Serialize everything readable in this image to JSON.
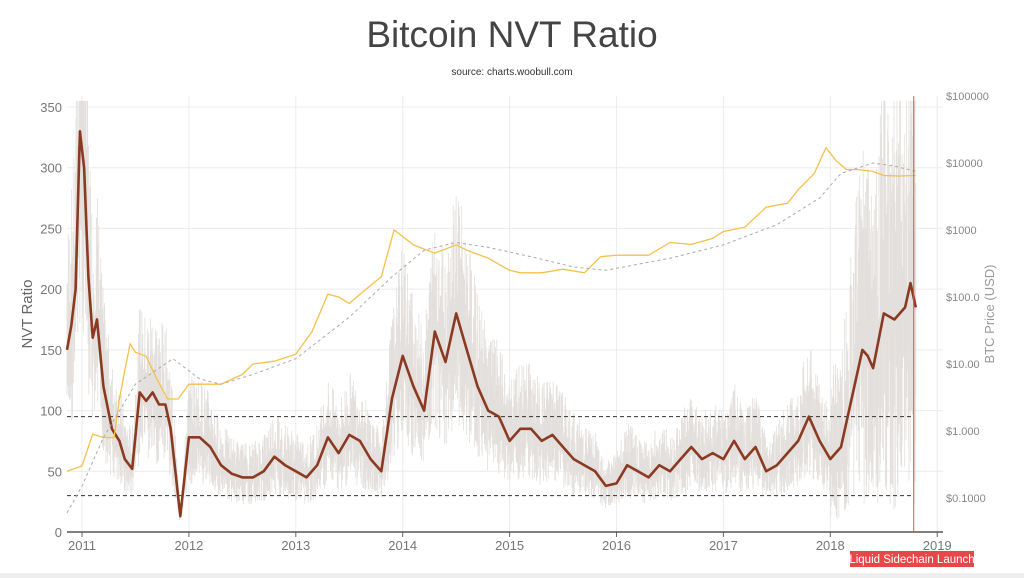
{
  "chart_data": {
    "type": "line",
    "title": "Bitcoin NVT Ratio",
    "subtitle": "source: charts.woobull.com",
    "xlim": [
      2010.86,
      2019.1
    ],
    "x_ticks": [
      "2011",
      "2012",
      "2013",
      "2014",
      "2015",
      "2016",
      "2017",
      "2018",
      "2019"
    ],
    "y_left": {
      "label": "NVT Ratio",
      "lim": [
        0,
        355
      ],
      "ticks": [
        "0",
        "50",
        "100",
        "150",
        "200",
        "250",
        "300",
        "350"
      ]
    },
    "y_right": {
      "label": "BTC Price (USD)",
      "scale": "log",
      "lim": [
        0.035,
        100000
      ],
      "ticks": [
        "$0.1000",
        "$1.000",
        "$10.00",
        "$100.0",
        "$1000",
        "$10000",
        "$100000"
      ],
      "tick_values": [
        0.1,
        1,
        10,
        100,
        1000,
        10000,
        100000
      ]
    },
    "grid": true,
    "colors": {
      "nvt": "#8b3a22",
      "price": "#f5c04a",
      "price_ma": "#aaaaaa",
      "raw": "#e3dfdc",
      "threshold": "#333333",
      "event": "#e8474a"
    },
    "thresholds": [
      95,
      30
    ],
    "event": {
      "x": 2018.78,
      "label": "Liquid Sidechain Launch"
    },
    "series": [
      {
        "axis": "left",
        "kind": "nvt",
        "x": [
          2010.86,
          2010.9,
          2010.94,
          2010.98,
          2011.02,
          2011.06,
          2011.1,
          2011.14,
          2011.2,
          2011.28,
          2011.35,
          2011.4,
          2011.47,
          2011.54,
          2011.6,
          2011.66,
          2011.72,
          2011.78,
          2011.83,
          2011.92,
          2012.0,
          2012.1,
          2012.2,
          2012.3,
          2012.4,
          2012.5,
          2012.6,
          2012.7,
          2012.8,
          2012.9,
          2013.0,
          2013.1,
          2013.2,
          2013.3,
          2013.4,
          2013.5,
          2013.6,
          2013.7,
          2013.8,
          2013.9,
          2014.0,
          2014.1,
          2014.2,
          2014.3,
          2014.4,
          2014.5,
          2014.6,
          2014.7,
          2014.8,
          2014.9,
          2015.0,
          2015.1,
          2015.2,
          2015.3,
          2015.4,
          2015.5,
          2015.6,
          2015.7,
          2015.8,
          2015.9,
          2016.0,
          2016.1,
          2016.2,
          2016.3,
          2016.4,
          2016.5,
          2016.6,
          2016.7,
          2016.8,
          2016.9,
          2017.0,
          2017.1,
          2017.2,
          2017.3,
          2017.4,
          2017.5,
          2017.6,
          2017.7,
          2017.8,
          2017.9,
          2018.0,
          2018.05,
          2018.1,
          2018.2,
          2018.3,
          2018.35,
          2018.4,
          2018.5,
          2018.6,
          2018.7,
          2018.75,
          2018.8
        ],
        "values": [
          150,
          170,
          200,
          330,
          300,
          210,
          160,
          175,
          120,
          85,
          75,
          60,
          52,
          115,
          108,
          115,
          105,
          105,
          85,
          13,
          78,
          78,
          70,
          55,
          48,
          45,
          45,
          50,
          62,
          55,
          50,
          45,
          55,
          78,
          65,
          80,
          75,
          60,
          50,
          110,
          145,
          120,
          100,
          165,
          140,
          180,
          150,
          120,
          100,
          95,
          75,
          85,
          85,
          75,
          80,
          70,
          60,
          55,
          50,
          38,
          40,
          55,
          50,
          45,
          55,
          50,
          60,
          70,
          60,
          65,
          60,
          75,
          60,
          70,
          50,
          55,
          65,
          75,
          95,
          75,
          60,
          65,
          70,
          110,
          150,
          145,
          135,
          180,
          175,
          185,
          205,
          185
        ]
      },
      {
        "axis": "right",
        "kind": "price",
        "x": [
          2010.86,
          2011.0,
          2011.1,
          2011.2,
          2011.3,
          2011.35,
          2011.4,
          2011.45,
          2011.5,
          2011.6,
          2011.7,
          2011.8,
          2011.9,
          2012.0,
          2012.1,
          2012.2,
          2012.3,
          2012.5,
          2012.6,
          2012.8,
          2013.0,
          2013.15,
          2013.3,
          2013.4,
          2013.5,
          2013.6,
          2013.8,
          2013.92,
          2014.0,
          2014.1,
          2014.3,
          2014.5,
          2014.6,
          2014.8,
          2015.0,
          2015.1,
          2015.3,
          2015.5,
          2015.7,
          2015.85,
          2016.0,
          2016.3,
          2016.5,
          2016.7,
          2016.9,
          2017.0,
          2017.2,
          2017.4,
          2017.6,
          2017.7,
          2017.85,
          2017.96,
          2018.05,
          2018.15,
          2018.25,
          2018.4,
          2018.5,
          2018.65,
          2018.8
        ],
        "values": [
          0.25,
          0.3,
          0.9,
          0.8,
          0.8,
          3,
          8,
          20,
          15,
          13,
          6,
          3,
          3,
          5,
          5,
          5,
          5,
          7,
          10,
          11,
          14,
          30,
          110,
          100,
          80,
          110,
          200,
          1000,
          800,
          600,
          450,
          600,
          500,
          380,
          250,
          230,
          230,
          260,
          230,
          400,
          420,
          420,
          650,
          610,
          750,
          950,
          1100,
          2200,
          2500,
          4000,
          7000,
          17000,
          11000,
          8000,
          8000,
          7500,
          6500,
          6400,
          6500
        ]
      },
      {
        "axis": "right",
        "kind": "price_ma",
        "x": [
          2010.86,
          2011.0,
          2011.2,
          2011.5,
          2011.85,
          2012.1,
          2012.3,
          2012.6,
          2013.0,
          2013.5,
          2013.9,
          2014.2,
          2014.5,
          2014.8,
          2015.2,
          2015.6,
          2015.9,
          2016.5,
          2017.0,
          2017.5,
          2017.9,
          2018.1,
          2018.4,
          2018.6,
          2018.8
        ],
        "values": [
          0.06,
          0.15,
          0.8,
          5,
          12,
          6,
          5,
          7,
          12,
          50,
          200,
          500,
          650,
          550,
          400,
          280,
          250,
          380,
          600,
          1200,
          3000,
          7000,
          10000,
          9000,
          7500
        ]
      }
    ]
  }
}
